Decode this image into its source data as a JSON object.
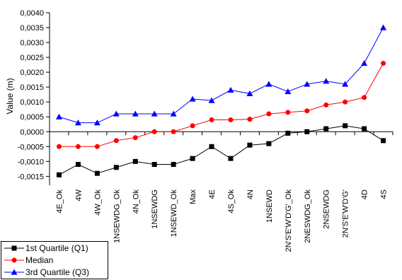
{
  "chart_data": {
    "type": "line",
    "title": "",
    "xlabel": "",
    "ylabel": "Value (m)",
    "ylim": [
      -0.0018,
      0.004
    ],
    "yticks": [
      0.004,
      0.0035,
      0.003,
      0.0025,
      0.002,
      0.0015,
      0.001,
      0.0005,
      0.0,
      -0.0005,
      -0.001,
      -0.0015
    ],
    "ytick_labels": [
      "0,0040",
      "0,0035",
      "0,0030",
      "0,0025",
      "0,0020",
      "0,0015",
      "0,0010",
      "0,0005",
      "0,0000",
      "-0,0005",
      "-0,0010",
      "-0,0015"
    ],
    "grid": false,
    "legend_position": "bottom-left",
    "categories": [
      "4E_Ok",
      "4W",
      "4W_Ok",
      "1NSEWDG_Ok",
      "4N_Ok",
      "1NSEWDG",
      "1NSEWD_Ok",
      "Max",
      "4E",
      "4S_Ok",
      "4N",
      "1NSEWD",
      "2N'S'E'W'D'G'_Ok",
      "2NESWDG_Ok",
      "2NSEWDG",
      "2N'S'E'W'D'G'",
      "4D",
      "4S"
    ],
    "series": [
      {
        "name": "1st Quartile (Q1)",
        "color": "#000000",
        "marker": "square",
        "values": [
          -0.00145,
          -0.0011,
          -0.0014,
          -0.0012,
          -0.001,
          -0.0011,
          -0.0011,
          -0.0009,
          -0.0005,
          -0.0009,
          -0.00045,
          -0.0004,
          -5e-05,
          0.0,
          0.0001,
          0.0002,
          0.0001,
          -0.0003
        ]
      },
      {
        "name": "Median",
        "color": "#ff0000",
        "marker": "circle",
        "values": [
          -0.0005,
          -0.0005,
          -0.0005,
          -0.0003,
          -0.0002,
          0.0,
          0.0,
          0.0002,
          0.0004,
          0.0004,
          0.00042,
          0.0006,
          0.00065,
          0.0007,
          0.0009,
          0.001,
          0.00115,
          0.0023
        ]
      },
      {
        "name": "3rd Quartile (Q3)",
        "color": "#0000ff",
        "marker": "triangle",
        "values": [
          0.0005,
          0.0003,
          0.0003,
          0.0006,
          0.0006,
          0.0006,
          0.0006,
          0.0011,
          0.00105,
          0.0014,
          0.00128,
          0.0016,
          0.00135,
          0.0016,
          0.0017,
          0.0016,
          0.0023,
          0.0035
        ]
      }
    ]
  }
}
